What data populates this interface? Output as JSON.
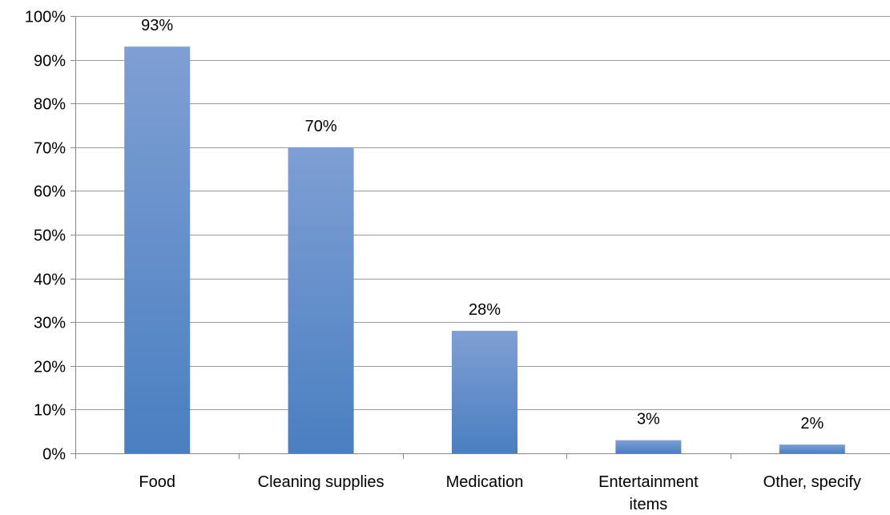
{
  "chart_data": {
    "type": "bar",
    "categories": [
      "Food",
      "Cleaning supplies",
      "Medication",
      "Entertainment items",
      "Other, specify"
    ],
    "values": [
      93,
      70,
      28,
      3,
      2
    ],
    "data_labels": [
      "93%",
      "70%",
      "28%",
      "3%",
      "2%"
    ],
    "title": "",
    "xlabel": "",
    "ylabel": "",
    "ylim": [
      0,
      100
    ],
    "yticks": [
      0,
      10,
      20,
      30,
      40,
      50,
      60,
      70,
      80,
      90,
      100
    ],
    "ytick_labels": [
      "0%",
      "10%",
      "20%",
      "30%",
      "40%",
      "50%",
      "60%",
      "70%",
      "80%",
      "90%",
      "100%"
    ],
    "grid": true,
    "legend": "none",
    "bar_color_top": "#7f9fd4",
    "bar_color_bottom": "#4a7fc1"
  }
}
